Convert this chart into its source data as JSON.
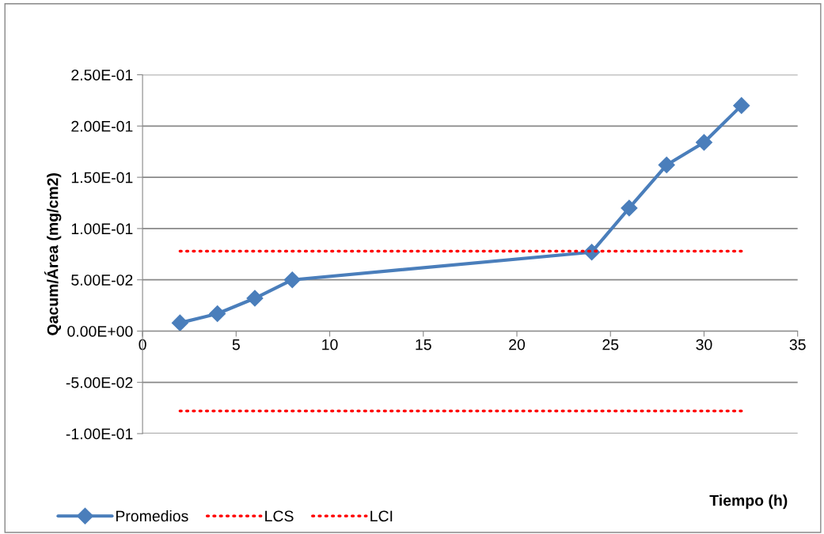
{
  "chart_data": {
    "type": "line",
    "xlabel": "Tiempo (h)",
    "ylabel": "Qacum/Área (mg/cm2)",
    "series": [
      {
        "name": "Promedios",
        "color": "#4a7ebb",
        "x": [
          2,
          4,
          6,
          8,
          24,
          26,
          28,
          30,
          32
        ],
        "values": [
          0.008,
          0.017,
          0.032,
          0.05,
          0.077,
          0.12,
          0.162,
          0.184,
          0.22
        ],
        "marker": "diamond",
        "line_style": "solid"
      },
      {
        "name": "LCS",
        "color": "#ff0000",
        "x": [
          2,
          32
        ],
        "values": [
          0.078,
          0.078
        ],
        "marker": "none",
        "line_style": "dotted"
      },
      {
        "name": "LCI",
        "color": "#ff0000",
        "x": [
          2,
          32
        ],
        "values": [
          -0.078,
          -0.078
        ],
        "marker": "none",
        "line_style": "dotted"
      }
    ],
    "xlim": [
      0,
      35
    ],
    "xticks": [
      0,
      5,
      10,
      15,
      20,
      25,
      30,
      35
    ],
    "ylim": [
      -0.1,
      0.25
    ],
    "yticks": [
      {
        "value": -0.1,
        "label": "-1.00E-01"
      },
      {
        "value": -0.05,
        "label": "-5.00E-02"
      },
      {
        "value": 0,
        "label": "0.00E+00"
      },
      {
        "value": 0.05,
        "label": "5.00E-02"
      },
      {
        "value": 0.1,
        "label": "1.00E-01"
      },
      {
        "value": 0.15,
        "label": "1.50E-01"
      },
      {
        "value": 0.2,
        "label": "2.00E-01"
      },
      {
        "value": 0.25,
        "label": "2.50E-01"
      }
    ],
    "grid": "y",
    "legend": "bottom"
  }
}
